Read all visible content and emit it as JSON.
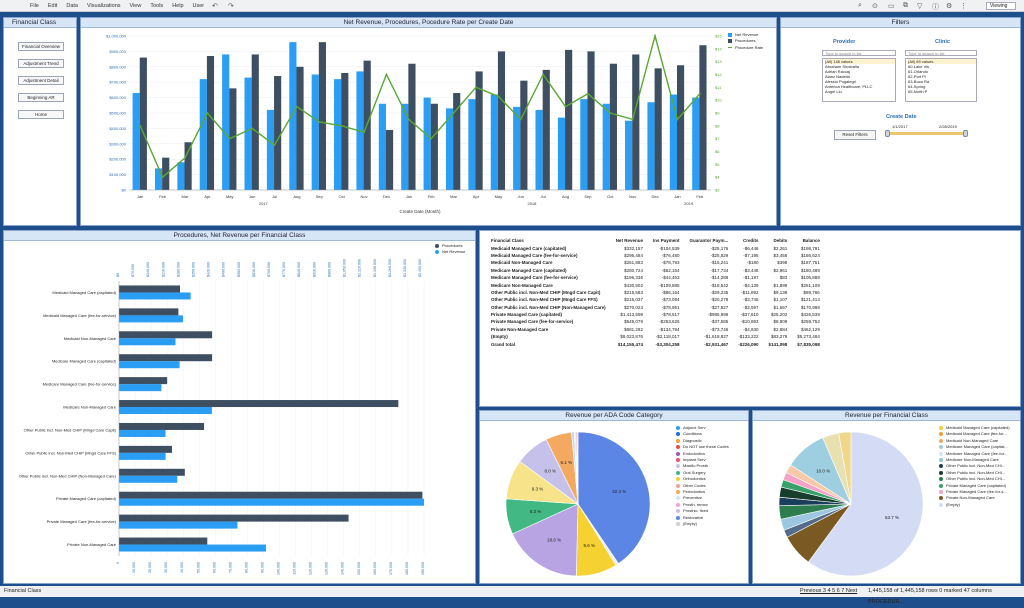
{
  "menu": {
    "items": [
      "File",
      "Edit",
      "Data",
      "Visualizations",
      "View",
      "Tools",
      "Help",
      "User"
    ],
    "viewing": "Viewing"
  },
  "financial_class": {
    "title": "Financial Class",
    "buttons": [
      "Financial Overview",
      "Adjustment Trend",
      "Adjustment Detail",
      "Beginning AR",
      "Home"
    ]
  },
  "revenue_chart": {
    "title": "Net Revenue, Procedures, Pocedure Rate per Create Date",
    "legend": [
      "Net Revenue",
      "Procedures",
      "Procedure Rate"
    ],
    "xlabel": "Create Date (Month)",
    "years": [
      "2017",
      "2018",
      "2019"
    ]
  },
  "filters": {
    "title": "Filters",
    "provider_label": "Provider",
    "clinic_label": "Clinic",
    "search_placeholder": "Type to search in list",
    "provider_items": [
      "(All) 148 values",
      "Abraham Shokralla",
      "Adrian Raccaj",
      "Alanz Nadella",
      "Alessio Pugalegri",
      "America Healthcare, PLLC",
      "Angel Liu"
    ],
    "clinic_items": [
      "(All) 65 values",
      "60-Lake Vis",
      "61-Orlando",
      "62-Port Pi",
      "63-Boca Ra",
      "64-Spring",
      "65-North P"
    ],
    "create_date_label": "Create Date",
    "date_start": "1/1/2017",
    "date_end": "2/28/2019",
    "reset_label": "Reset Filters"
  },
  "hbar": {
    "title": "Procedures, Net Revenue per Financial Class",
    "legend": [
      "Procedures",
      "Net Revenue"
    ]
  },
  "table": {
    "headers": [
      "Financial Class",
      "Net Revenue",
      "Ins Payment",
      "Guarantor Paym...",
      "Credits",
      "Debits",
      "Balance"
    ],
    "rows": [
      [
        "Medicaid Managed Care (capitated)",
        "$332,157",
        "-$104,539",
        "-$25,176",
        "-$6,446",
        "$2,261",
        "$198,791"
      ],
      [
        "Medicaid Managed Care (fee-for-service)",
        "$296,484",
        "-$76,480",
        "-$25,829",
        "-$7,195",
        "$3,456",
        "$186,624"
      ],
      [
        "Medicaid Non-Managed Care",
        "$261,883",
        "-$78,793",
        "-$15,241",
        "-$180",
        "$398",
        "$187,751"
      ],
      [
        "Medicare Managed Care (capitated)",
        "$280,724",
        "-$62,154",
        "-$17,734",
        "-$3,448",
        "$2,961",
        "$180,489"
      ],
      [
        "Medicare Managed Care (fee-for-service)",
        "$196,336",
        "-$44,463",
        "-$14,288",
        "-$1,197",
        "$83",
        "$106,888"
      ],
      [
        "Medicare Non-Managed Care",
        "$430,502",
        "-$109,885",
        "-$18,542",
        "-$4,139",
        "$1,899",
        "$251,109"
      ],
      [
        "Other Public incl. Non-Med CHIP (Mngd Care Capit)",
        "$215,583",
        "-$86,164",
        "-$29,235",
        "-$11,892",
        "$9,138",
        "$89,766"
      ],
      [
        "Other Public incl. Non-Med CHIP (Mngd Care FFS)",
        "$216,037",
        "-$73,084",
        "-$20,278",
        "-$3,745",
        "$1,107",
        "$121,414"
      ],
      [
        "Other Public incl. Non-Med CHIP (Non-Managed Care)",
        "$270,023",
        "-$78,951",
        "-$27,827",
        "-$2,597",
        "$1,667",
        "$170,998"
      ],
      [
        "Private Managed Care (capitated)",
        "$1,413,599",
        "-$78,517",
        "-$985,998",
        "-$37,610",
        "$25,202",
        "$426,539"
      ],
      [
        "Private Managed Care (fee-for-service)",
        "$549,079",
        "-$253,626",
        "-$37,585",
        "-$10,893",
        "$8,809",
        "$259,752"
      ],
      [
        "Private Non-Managed Care",
        "$681,292",
        "-$134,784",
        "-$73,746",
        "-$4,830",
        "$2,884",
        "$462,129"
      ],
      [
        "(Empty)",
        "$9,023,876",
        "-$2,118,017",
        "-$1,618,827",
        "-$133,222",
        "$83,279",
        "$5,273,484"
      ],
      [
        "Grand total",
        "$14,155,474",
        "-$3,304,258",
        "-$2,931,467",
        "-$226,090",
        "$141,098",
        "$7,835,098"
      ]
    ]
  },
  "ada_pie": {
    "title": "Revenue per ADA Code Category",
    "legend": [
      "Adjunct Serv",
      "Conditions",
      "Diagnostic",
      "Do NOT use these Codes",
      "Endodontics",
      "Implant Serv",
      "Maxillo Prosth",
      "Oral Surgery",
      "Orthodontics",
      "Other Codes",
      "Periodontics",
      "Preventive",
      "Prosth, remov",
      "Prosthic, fixed",
      "Restorative",
      "(Empty)"
    ],
    "labels": [
      "9.6 %",
      "18.6 %",
      "8.3 %",
      "9.3 %",
      "8.0 %",
      "6.1 %",
      "42.3 %"
    ]
  },
  "fc_pie": {
    "title": "Revenue per Financial Class",
    "legend": [
      "Medicaid Managed Care (capitated)",
      "Medicaid Managed Care (fee-for...",
      "Medicaid Non-Managed Care",
      "Medicare Managed Care (capitat...",
      "Medicare Managed Care (fee-for...",
      "Medicare Non-Managed Care",
      "Other Public incl. Non-Med CHI...",
      "Other Public incl. Non-Med CHI...",
      "Other Public incl. Non-Med CHI...",
      "Private Managed Care (capitated)",
      "Private Managed Care (fee-for-s...",
      "Private Non-Managed Care",
      "(Empty)"
    ],
    "labels": [
      "10.0 %",
      "63.7 %"
    ]
  },
  "status": {
    "left": "Financial Class",
    "pager": "Previous 3 4 5 6 7 Next",
    "info": "1,445,158 of 1,445,158 rows  0 marked  47 columns  PROCEDUR..."
  },
  "colors": {
    "net_revenue": "#2a9df4",
    "procedures": "#3d4f60",
    "procedure_rate": "#5aa832"
  },
  "chart_data": [
    {
      "type": "bar",
      "title": "Net Revenue, Procedures, Pocedure Rate per Create Date",
      "xlabel": "Create Date (Month)",
      "categories": [
        "Jan 2017",
        "Feb 2017",
        "Mar 2017",
        "Apr 2017",
        "May 2017",
        "Jun 2017",
        "Jul 2017",
        "Aug 2017",
        "Sep 2017",
        "Oct 2017",
        "Nov 2017",
        "Dec 2017",
        "Jan 2018",
        "Feb 2018",
        "Mar 2018",
        "Apr 2018",
        "May 2018",
        "Jun 2018",
        "Jul 2018",
        "Aug 2018",
        "Sep 2018",
        "Oct 2018",
        "Nov 2018",
        "Dec 2018",
        "Jan 2019",
        "Feb 2019"
      ],
      "ylim": [
        0,
        1000000
      ],
      "ylim_right": [
        3,
        15
      ],
      "series": [
        {
          "name": "Net Revenue",
          "values": [
            630000,
            140000,
            180000,
            720000,
            880000,
            730000,
            520000,
            960000,
            750000,
            720000,
            770000,
            560000,
            560000,
            600000,
            530000,
            590000,
            620000,
            540000,
            520000,
            470000,
            590000,
            560000,
            450000,
            570000,
            620000,
            600000
          ]
        },
        {
          "name": "Procedures",
          "values": [
            860000,
            210000,
            310000,
            870000,
            660000,
            880000,
            740000,
            800000,
            960000,
            760000,
            840000,
            390000,
            820000,
            560000,
            630000,
            770000,
            900000,
            710000,
            780000,
            910000,
            900000,
            820000,
            880000,
            790000,
            810000,
            940000
          ]
        },
        {
          "name": "Procedure Rate",
          "values": [
            8.0,
            4.0,
            5.5,
            9.0,
            7.0,
            7.8,
            6.5,
            9.5,
            8.3,
            8.0,
            7.5,
            12.0,
            8.5,
            7.0,
            9.0,
            11.0,
            10.3,
            8.5,
            12.0,
            9.5,
            10.5,
            9.0,
            8.5,
            15.0,
            8.5,
            10.5
          ]
        }
      ]
    },
    {
      "type": "bar",
      "title": "Procedures, Net Revenue per Financial Class",
      "categories": [
        "Medicaid Managed Care (capitated)",
        "Medicaid Managed Care (fee-for-service)",
        "Medicaid Non-Managed Care",
        "Medicare Managed Care (capitated)",
        "Medicare Managed Care (fee-for-service)",
        "Medicare Non-Managed Care",
        "Other Public incl. Non-Med CHIP (Mngd Care Capit)",
        "Other Public incl. Non-Med CHIP (Mngd Care FFS)",
        "Other Public incl. Non-Med CHIP (Non-Managed Care)",
        "Private Managed Care (capitated)",
        "Private Managed Care (fee-for-service)",
        "Private Non-Managed Care"
      ],
      "series": [
        {
          "name": "Procedures",
          "values": [
            38000,
            37000,
            58000,
            58000,
            30000,
            174000,
            53000,
            33000,
            41000,
            189000,
            143000,
            55000
          ]
        },
        {
          "name": "Net Revenue",
          "values": [
            332157,
            296484,
            261883,
            280724,
            196336,
            430502,
            215583,
            216037,
            270023,
            1413599,
            549079,
            681292
          ]
        }
      ],
      "xlim": [
        0,
        190000
      ],
      "xlim_top": [
        0,
        1413599
      ]
    },
    {
      "type": "pie",
      "title": "Revenue per ADA Code Category",
      "slices": [
        {
          "label": "Restorative",
          "value": 42.3
        },
        {
          "label": "Diagnostic",
          "value": 9.6
        },
        {
          "label": "Preventive",
          "value": 18.6
        },
        {
          "label": "Periodontics",
          "value": 8.3
        },
        {
          "label": "Prosth, remov",
          "value": 9.3
        },
        {
          "label": "Oral Surgery",
          "value": 8.0
        },
        {
          "label": "Endodontics",
          "value": 6.1
        },
        {
          "label": "Other",
          "value": -1
        }
      ]
    },
    {
      "type": "pie",
      "title": "Revenue per Financial Class",
      "slices": [
        {
          "label": "(Empty)",
          "value": 63.7
        },
        {
          "label": "Private Managed Care (capitated)",
          "value": 10.0
        }
      ]
    }
  ]
}
